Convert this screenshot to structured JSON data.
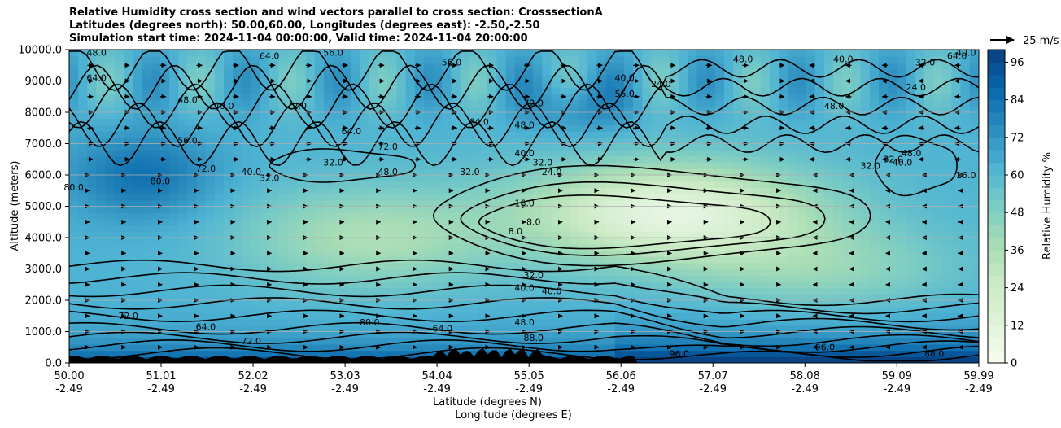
{
  "title_lines": [
    "Relative Humidity cross section and wind vectors parallel to cross section: CrosssectionA",
    "Latitudes (degrees north): 50.00,60.00, Longitudes (degrees east): -2.50,-2.50",
    "Simulation start time: 2024-11-04 00:00:00, Valid time: 2024-11-04 20:00:00"
  ],
  "chart_data": {
    "type": "heatmap",
    "ylabel": "Altitude (meters)",
    "xlabel_lines": [
      "Latitude (degrees N)",
      "Longitude (degrees E)"
    ],
    "ylim": [
      0,
      10000
    ],
    "xlim": [
      50.0,
      59.99
    ],
    "y_ticks": [
      "0.0",
      "1000.0",
      "2000.0",
      "3000.0",
      "4000.0",
      "5000.0",
      "6000.0",
      "7000.0",
      "8000.0",
      "9000.0",
      "10000.0"
    ],
    "x_ticks": [
      {
        "lat": "50.00",
        "lon": "-2.49"
      },
      {
        "lat": "51.01",
        "lon": "-2.49"
      },
      {
        "lat": "52.02",
        "lon": "-2.49"
      },
      {
        "lat": "53.03",
        "lon": "-2.49"
      },
      {
        "lat": "54.04",
        "lon": "-2.49"
      },
      {
        "lat": "55.05",
        "lon": "-2.49"
      },
      {
        "lat": "56.06",
        "lon": "-2.49"
      },
      {
        "lat": "57.07",
        "lon": "-2.49"
      },
      {
        "lat": "58.08",
        "lon": "-2.49"
      },
      {
        "lat": "59.09",
        "lon": "-2.49"
      },
      {
        "lat": "59.99",
        "lon": "-2.49"
      }
    ],
    "grid": "horizontal",
    "colorbar": {
      "label": "Relative Humidity %",
      "ticks": [
        "0",
        "12",
        "24",
        "36",
        "48",
        "60",
        "72",
        "84",
        "96"
      ],
      "tick_values": [
        0,
        12,
        24,
        36,
        48,
        60,
        72,
        84,
        96
      ],
      "range": [
        0,
        100
      ],
      "colors": [
        "#f7fcf0",
        "#e0f3db",
        "#ccebc5",
        "#a8ddb5",
        "#7bccc4",
        "#4eb3d3",
        "#2b8cbe",
        "#0868ac",
        "#084081"
      ]
    },
    "quiver_key": "25 m/s",
    "contour_labels": [
      {
        "text": "48.0",
        "lat": 50.3,
        "alt": 9800
      },
      {
        "text": "64.0",
        "lat": 50.3,
        "alt": 9000
      },
      {
        "text": "56.0",
        "lat": 51.3,
        "alt": 7000
      },
      {
        "text": "72.0",
        "lat": 51.5,
        "alt": 6100
      },
      {
        "text": "80.0",
        "lat": 51.0,
        "alt": 5700
      },
      {
        "text": "80.0",
        "lat": 50.05,
        "alt": 5500
      },
      {
        "text": "40.0",
        "lat": 52.0,
        "alt": 6000
      },
      {
        "text": "32.0",
        "lat": 52.2,
        "alt": 5800
      },
      {
        "text": "32.0",
        "lat": 52.9,
        "alt": 6300
      },
      {
        "text": "64.0",
        "lat": 53.1,
        "alt": 7300
      },
      {
        "text": "72.0",
        "lat": 53.5,
        "alt": 6800
      },
      {
        "text": "48.0",
        "lat": 53.5,
        "alt": 6000
      },
      {
        "text": "32.0",
        "lat": 54.4,
        "alt": 6000
      },
      {
        "text": "64.0",
        "lat": 54.5,
        "alt": 7600
      },
      {
        "text": "56.0",
        "lat": 54.2,
        "alt": 9500
      },
      {
        "text": "72.0",
        "lat": 55.1,
        "alt": 8200
      },
      {
        "text": "48.0",
        "lat": 55.0,
        "alt": 7500
      },
      {
        "text": "40.0",
        "lat": 55.0,
        "alt": 6600
      },
      {
        "text": "32.0",
        "lat": 55.2,
        "alt": 6300
      },
      {
        "text": "24.0",
        "lat": 55.3,
        "alt": 6000
      },
      {
        "text": "16.0",
        "lat": 55.0,
        "alt": 5000
      },
      {
        "text": "8.0",
        "lat": 55.1,
        "alt": 4400
      },
      {
        "text": "8.0",
        "lat": 54.9,
        "alt": 4100
      },
      {
        "text": "32.0",
        "lat": 55.1,
        "alt": 2700
      },
      {
        "text": "40.0",
        "lat": 55.0,
        "alt": 2300
      },
      {
        "text": "40.0",
        "lat": 55.3,
        "alt": 2200
      },
      {
        "text": "48.0",
        "lat": 55.0,
        "alt": 1200
      },
      {
        "text": "88.0",
        "lat": 55.1,
        "alt": 700
      },
      {
        "text": "64.0",
        "lat": 51.5,
        "alt": 1050
      },
      {
        "text": "72.0",
        "lat": 52.0,
        "alt": 600
      },
      {
        "text": "72.0",
        "lat": 50.65,
        "alt": 1400
      },
      {
        "text": "80.0",
        "lat": 53.3,
        "alt": 1200
      },
      {
        "text": "64.0",
        "lat": 54.1,
        "alt": 1000
      },
      {
        "text": "96.0",
        "lat": 56.7,
        "alt": 200
      },
      {
        "text": "96.0",
        "lat": 58.3,
        "alt": 400
      },
      {
        "text": "88.0",
        "lat": 59.5,
        "alt": 200
      },
      {
        "text": "56.0",
        "lat": 56.1,
        "alt": 8500
      },
      {
        "text": "40.0",
        "lat": 56.1,
        "alt": 9000
      },
      {
        "text": "24.0",
        "lat": 56.5,
        "alt": 8800
      },
      {
        "text": "48.0",
        "lat": 57.4,
        "alt": 9600
      },
      {
        "text": "40.0",
        "lat": 58.5,
        "alt": 9600
      },
      {
        "text": "32.0",
        "lat": 59.4,
        "alt": 9500
      },
      {
        "text": "24.0",
        "lat": 59.3,
        "alt": 8700
      },
      {
        "text": "48.0",
        "lat": 58.4,
        "alt": 8100
      },
      {
        "text": "32.0",
        "lat": 58.8,
        "alt": 6200
      },
      {
        "text": "32.0",
        "lat": 59.05,
        "alt": 6400
      },
      {
        "text": "40.0",
        "lat": 59.15,
        "alt": 6300
      },
      {
        "text": "48.0",
        "lat": 59.25,
        "alt": 6600
      },
      {
        "text": "16.0",
        "lat": 59.85,
        "alt": 5900
      },
      {
        "text": "40.0",
        "lat": 59.85,
        "alt": 9800
      },
      {
        "text": "64.0",
        "lat": 59.75,
        "alt": 9700
      },
      {
        "text": "56.0",
        "lat": 52.9,
        "alt": 9800
      },
      {
        "text": "40.0",
        "lat": 51.7,
        "alt": 8100
      },
      {
        "text": "48.0",
        "lat": 51.3,
        "alt": 8300
      },
      {
        "text": "72.0",
        "lat": 52.5,
        "alt": 8100
      },
      {
        "text": "64.0",
        "lat": 52.2,
        "alt": 9700
      }
    ]
  }
}
